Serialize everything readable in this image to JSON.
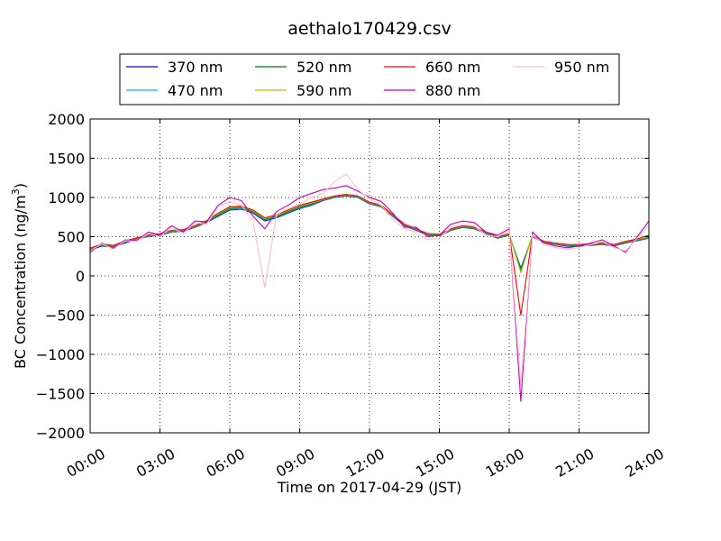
{
  "chart_data": {
    "type": "line",
    "title": "aethalo170429.csv",
    "xlabel": "Time on 2017-04-29 (JST)",
    "ylabel": "BC Concentration (ng/m³)",
    "ylabel_main": "BC Concentration (ng/m",
    "ylabel_sup": "3",
    "ylabel_end": ")",
    "xlim": [
      "00:00",
      "24:00"
    ],
    "ylim": [
      -2000,
      2000
    ],
    "yticks": [
      -2000,
      -1500,
      -1000,
      -500,
      0,
      500,
      1000,
      1500,
      2000
    ],
    "ytick_labels": [
      "−2000",
      "−1500",
      "−1000",
      "−500",
      "0",
      "500",
      "1000",
      "1500",
      "2000"
    ],
    "xtick_labels": [
      "00:00",
      "03:00",
      "06:00",
      "09:00",
      "12:00",
      "15:00",
      "18:00",
      "21:00",
      "24:00"
    ],
    "grid": true,
    "legend_position": "top",
    "legend": [
      {
        "name": "370 nm",
        "color": "#0000ff"
      },
      {
        "name": "470 nm",
        "color": "#00bfbf"
      },
      {
        "name": "520 nm",
        "color": "#008000"
      },
      {
        "name": "590 nm",
        "color": "#bfbf00"
      },
      {
        "name": "660 nm",
        "color": "#ff0000"
      },
      {
        "name": "880 nm",
        "color": "#bf00bf"
      },
      {
        "name": "950 nm",
        "color": "#ffc0cb"
      }
    ],
    "hours": [
      0,
      0.5,
      1,
      1.5,
      2,
      2.5,
      3,
      3.5,
      4,
      4.5,
      5,
      5.5,
      6,
      6.5,
      7,
      7.5,
      8,
      8.5,
      9,
      9.5,
      10,
      10.5,
      11,
      11.5,
      12,
      12.5,
      13,
      13.5,
      14,
      14.5,
      15,
      15.5,
      16,
      16.5,
      17,
      17.5,
      18,
      18.5,
      19,
      19.5,
      20,
      20.5,
      21,
      21.5,
      22,
      22.5,
      23,
      23.5,
      24
    ],
    "series": [
      {
        "name": "370 nm",
        "color": "#0000ff",
        "values": [
          330,
          380,
          370,
          420,
          470,
          500,
          520,
          560,
          570,
          620,
          680,
          760,
          840,
          850,
          800,
          700,
          740,
          800,
          860,
          900,
          960,
          1000,
          1020,
          1000,
          920,
          880,
          760,
          640,
          580,
          520,
          510,
          580,
          620,
          600,
          540,
          480,
          520,
          100,
          500,
          420,
          400,
          380,
          380,
          390,
          400,
          380,
          420,
          450,
          480
        ]
      },
      {
        "name": "470 nm",
        "color": "#00bfbf",
        "values": [
          340,
          390,
          375,
          430,
          470,
          505,
          525,
          565,
          575,
          625,
          690,
          770,
          850,
          860,
          810,
          710,
          750,
          810,
          870,
          910,
          965,
          1005,
          1025,
          1005,
          925,
          885,
          765,
          645,
          585,
          525,
          515,
          585,
          625,
          605,
          545,
          485,
          525,
          80,
          505,
          425,
          405,
          385,
          385,
          395,
          405,
          385,
          425,
          455,
          485
        ]
      },
      {
        "name": "520 nm",
        "color": "#008000",
        "values": [
          345,
          395,
          380,
          435,
          475,
          510,
          530,
          570,
          580,
          630,
          695,
          780,
          860,
          870,
          820,
          720,
          760,
          820,
          880,
          920,
          970,
          1010,
          1030,
          1010,
          930,
          890,
          770,
          650,
          590,
          530,
          520,
          590,
          630,
          610,
          550,
          490,
          530,
          60,
          510,
          430,
          410,
          390,
          390,
          400,
          410,
          390,
          430,
          460,
          490
        ]
      },
      {
        "name": "590 nm",
        "color": "#bfbf00",
        "values": [
          350,
          400,
          385,
          440,
          480,
          515,
          535,
          575,
          585,
          635,
          700,
          790,
          870,
          880,
          830,
          730,
          770,
          830,
          890,
          930,
          975,
          1015,
          1035,
          1015,
          935,
          895,
          775,
          655,
          595,
          535,
          525,
          595,
          635,
          615,
          555,
          495,
          535,
          40,
          515,
          435,
          415,
          395,
          395,
          405,
          415,
          395,
          435,
          465,
          495
        ]
      },
      {
        "name": "660 nm",
        "color": "#ff0000",
        "values": [
          355,
          405,
          390,
          445,
          485,
          520,
          540,
          580,
          590,
          640,
          705,
          800,
          880,
          890,
          840,
          740,
          780,
          840,
          900,
          940,
          980,
          1020,
          1040,
          1020,
          940,
          900,
          780,
          660,
          600,
          540,
          530,
          600,
          640,
          620,
          560,
          500,
          540,
          -500,
          520,
          440,
          420,
          400,
          400,
          410,
          420,
          400,
          440,
          470,
          520
        ]
      },
      {
        "name": "880 nm",
        "color": "#bf00bf",
        "values": [
          300,
          420,
          350,
          460,
          450,
          560,
          520,
          640,
          560,
          700,
          690,
          900,
          1000,
          960,
          760,
          600,
          820,
          900,
          1000,
          1050,
          1100,
          1120,
          1150,
          1080,
          1000,
          950,
          800,
          620,
          620,
          500,
          520,
          660,
          700,
          680,
          560,
          520,
          600,
          -1600,
          560,
          420,
          380,
          360,
          380,
          420,
          460,
          380,
          300,
          500,
          700
        ]
      },
      {
        "name": "950 nm",
        "color": "#ffc0cb",
        "values": [
          320,
          410,
          340,
          450,
          440,
          540,
          500,
          620,
          540,
          680,
          660,
          880,
          950,
          900,
          700,
          -150,
          780,
          860,
          920,
          1000,
          1050,
          1200,
          1300,
          1100,
          980,
          900,
          720,
          600,
          560,
          460,
          480,
          620,
          650,
          640,
          520,
          500,
          580,
          -1400,
          520,
          400,
          360,
          340,
          360,
          400,
          440,
          360,
          320,
          480,
          650
        ]
      }
    ]
  }
}
